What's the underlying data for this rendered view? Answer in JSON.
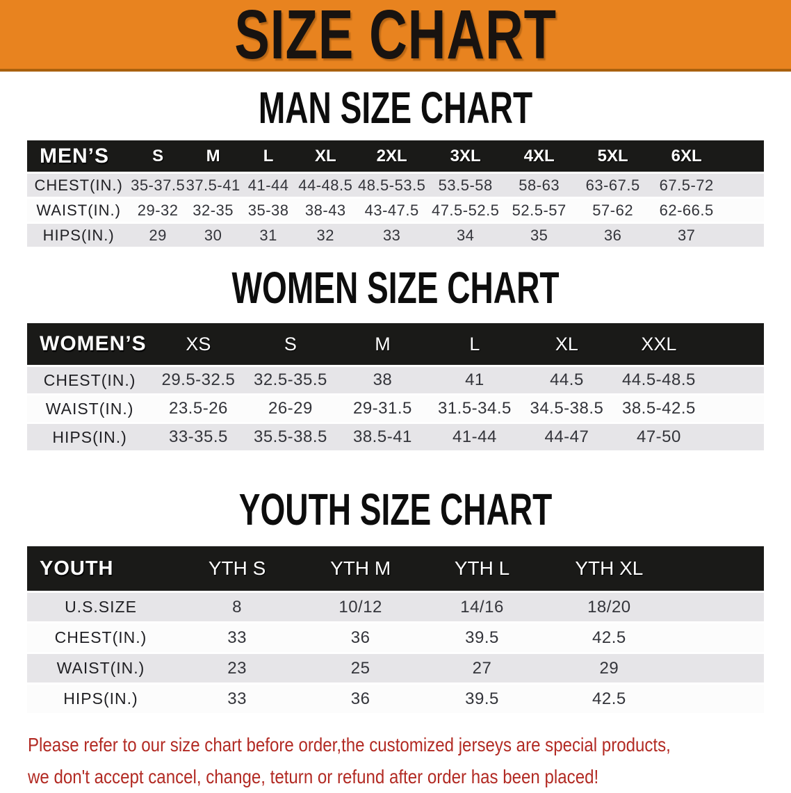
{
  "banner": {
    "title": "SIZE CHART",
    "bg_color": "#E8831F"
  },
  "sections": [
    {
      "heading": "MAN SIZE CHART",
      "table": {
        "header_label": "MEN’S",
        "columns": [
          "S",
          "M",
          "L",
          "XL",
          "2XL",
          "3XL",
          "4XL",
          "5XL",
          "6XL"
        ],
        "rows": [
          {
            "label": "CHEST(IN.)",
            "values": [
              "35-37.5",
              "37.5-41",
              "41-44",
              "44-48.5",
              "48.5-53.5",
              "53.5-58",
              "58-63",
              "63-67.5",
              "67.5-72"
            ]
          },
          {
            "label": "WAIST(IN.)",
            "values": [
              "29-32",
              "32-35",
              "35-38",
              "38-43",
              "43-47.5",
              "47.5-52.5",
              "52.5-57",
              "57-62",
              "62-66.5"
            ]
          },
          {
            "label": "HIPS(IN.)",
            "values": [
              "29",
              "30",
              "31",
              "32",
              "33",
              "34",
              "35",
              "36",
              "37"
            ]
          }
        ]
      }
    },
    {
      "heading": "WOMEN SIZE CHART",
      "table": {
        "header_label": "WOMEN’S",
        "columns": [
          "XS",
          "S",
          "M",
          "L",
          "XL",
          "XXL"
        ],
        "rows": [
          {
            "label": "CHEST(IN.)",
            "values": [
              "29.5-32.5",
              "32.5-35.5",
              "38",
              "41",
              "44.5",
              "44.5-48.5"
            ]
          },
          {
            "label": "WAIST(IN.)",
            "values": [
              "23.5-26",
              "26-29",
              "29-31.5",
              "31.5-34.5",
              "34.5-38.5",
              "38.5-42.5"
            ]
          },
          {
            "label": "HIPS(IN.)",
            "values": [
              "33-35.5",
              "35.5-38.5",
              "38.5-41",
              "41-44",
              "44-47",
              "47-50"
            ]
          }
        ]
      }
    },
    {
      "heading": "YOUTH SIZE CHART",
      "table": {
        "header_label": "YOUTH",
        "columns": [
          "YTH S",
          "YTH M",
          "YTH L",
          "YTH XL"
        ],
        "rows": [
          {
            "label": "U.S.SIZE",
            "values": [
              "8",
              "10/12",
              "14/16",
              "18/20"
            ]
          },
          {
            "label": "CHEST(IN.)",
            "values": [
              "33",
              "36",
              "39.5",
              "42.5"
            ]
          },
          {
            "label": "WAIST(IN.)",
            "values": [
              "23",
              "25",
              "27",
              "29"
            ]
          },
          {
            "label": "HIPS(IN.)",
            "values": [
              "33",
              "36",
              "39.5",
              "42.5"
            ]
          }
        ]
      }
    }
  ],
  "disclaimer": {
    "line1": "Please refer to our size chart before order,the customized jerseys are special products,",
    "line2": "we don't accept cancel, change, teturn or refund after order has been placed!",
    "text_color": "#B22A23"
  }
}
